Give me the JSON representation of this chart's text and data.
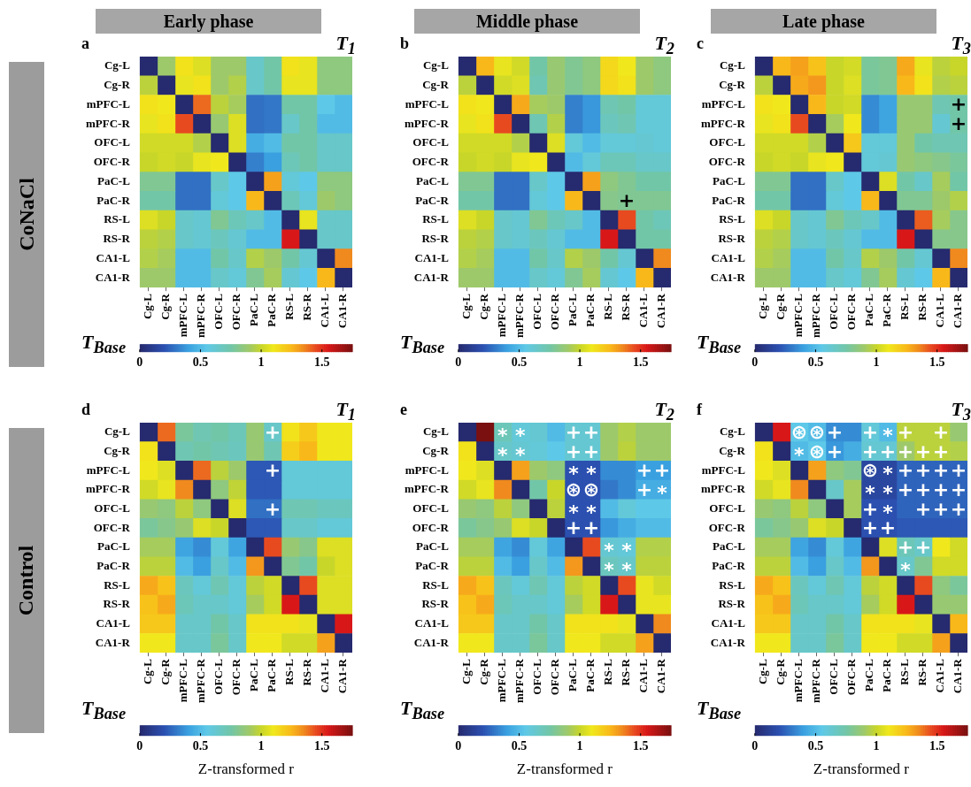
{
  "chart_data": [
    {
      "type": "heatmap",
      "title": "Early phase",
      "categories": [
        "Cg-L",
        "Cg-R",
        "mPFC-L",
        "mPFC-R",
        "OFC-L",
        "OFC-R",
        "PaC-L",
        "PaC-R",
        "RS-L",
        "RS-R",
        "CA1-L",
        "CA1-R"
      ],
      "y_categories": [
        "Cg-L",
        "Cg-R",
        "mPFC-L",
        "mPFC-R",
        "OFC-L",
        "OFC-R",
        "PaC-L",
        "PaC-R",
        "RS-L",
        "RS-R",
        "CA1-L",
        "CA1-R"
      ],
      "clim": [
        0,
        1.75
      ],
      "cells": [
        [
          0,
          0.9,
          1.12,
          1.05,
          0.9,
          0.9,
          0.65,
          0.75,
          1.12,
          1.08,
          0.85,
          0.85
        ],
        [
          0.97,
          0,
          1.08,
          1.12,
          0.9,
          0.95,
          0.65,
          0.75,
          1.08,
          1.08,
          0.85,
          0.85
        ],
        [
          1.12,
          1.1,
          0,
          1.4,
          0.97,
          0.92,
          0.28,
          0.3,
          0.75,
          0.75,
          0.55,
          0.5
        ],
        [
          1.08,
          1.12,
          1.45,
          0,
          0.88,
          1.05,
          0.28,
          0.3,
          0.65,
          0.75,
          0.5,
          0.5
        ],
        [
          1.02,
          1.02,
          1.02,
          0.95,
          0,
          1.05,
          0.45,
          0.5,
          0.75,
          0.75,
          0.65,
          0.65
        ],
        [
          1,
          1.02,
          1,
          1.08,
          1.1,
          0,
          0.32,
          0.4,
          0.7,
          0.75,
          0.65,
          0.65
        ],
        [
          0.8,
          0.8,
          0.28,
          0.28,
          0.65,
          0.55,
          0,
          1.3,
          0.6,
          0.55,
          0.85,
          0.85
        ],
        [
          0.75,
          0.75,
          0.28,
          0.28,
          0.6,
          0.55,
          1.25,
          0,
          0.7,
          0.6,
          0.9,
          0.85
        ],
        [
          1.05,
          1,
          0.65,
          0.62,
          0.8,
          0.7,
          0.65,
          0.5,
          0,
          1.08,
          0.65,
          0.65
        ],
        [
          0.97,
          0.95,
          0.65,
          0.62,
          0.68,
          0.62,
          0.5,
          0.5,
          1.55,
          0,
          0.65,
          0.65
        ],
        [
          0.95,
          0.92,
          0.5,
          0.5,
          0.75,
          0.65,
          0.95,
          0.9,
          0.75,
          0.62,
          0,
          1.35
        ],
        [
          0.9,
          0.9,
          0.5,
          0.5,
          0.65,
          0.6,
          0.8,
          0.92,
          0.62,
          0.55,
          1.25,
          0
        ]
      ],
      "cticks": [
        0,
        0.5,
        1,
        1.5
      ],
      "annotations": [
        "a",
        "T$_{1}$",
        "T$_{Base}$",
        "CoNaCl"
      ]
    },
    {
      "type": "heatmap",
      "title": "Middle phase",
      "categories": [
        "Cg-L",
        "Cg-R",
        "mPFC-L",
        "mPFC-R",
        "OFC-L",
        "OFC-R",
        "PaC-L",
        "PaC-R",
        "RS-L",
        "RS-R",
        "CA1-L",
        "CA1-R"
      ],
      "y_categories": [
        "Cg-L",
        "Cg-R",
        "mPFC-L",
        "mPFC-R",
        "OFC-L",
        "OFC-R",
        "PaC-L",
        "PaC-R",
        "RS-L",
        "RS-R",
        "CA1-L",
        "CA1-R"
      ],
      "clim": [
        0,
        1.75
      ],
      "cells": [
        [
          0,
          1.25,
          1.08,
          1.02,
          0.75,
          0.88,
          0.8,
          0.85,
          1.15,
          1.1,
          0.9,
          0.85
        ],
        [
          0.97,
          0,
          1.02,
          1.05,
          0.72,
          0.88,
          0.8,
          0.85,
          1.15,
          1.12,
          0.9,
          0.85
        ],
        [
          1.12,
          1.1,
          0,
          1.28,
          0.92,
          0.9,
          0.32,
          0.38,
          0.72,
          0.75,
          0.6,
          0.6
        ],
        [
          1.08,
          1.12,
          1.45,
          0,
          0.72,
          0.95,
          0.32,
          0.38,
          0.68,
          0.72,
          0.6,
          0.6
        ],
        [
          1.02,
          1.02,
          1.02,
          0.95,
          0,
          1.05,
          0.6,
          0.5,
          0.6,
          0.6,
          0.62,
          0.6
        ],
        [
          1,
          1.02,
          1,
          1.08,
          1.1,
          0,
          0.5,
          0.6,
          0.7,
          0.7,
          0.65,
          0.65
        ],
        [
          0.8,
          0.8,
          0.28,
          0.28,
          0.65,
          0.55,
          0,
          1.3,
          0.85,
          0.8,
          0.75,
          0.75
        ],
        [
          0.75,
          0.75,
          0.28,
          0.28,
          0.6,
          0.55,
          1.25,
          0,
          0.82,
          0.8,
          0.8,
          0.8
        ],
        [
          1.05,
          1,
          0.65,
          0.62,
          0.8,
          0.7,
          0.65,
          0.5,
          0,
          1.45,
          0.75,
          0.7
        ],
        [
          0.97,
          0.95,
          0.65,
          0.62,
          0.68,
          0.62,
          0.5,
          0.5,
          1.55,
          0,
          0.75,
          0.75
        ],
        [
          0.95,
          0.92,
          0.5,
          0.5,
          0.75,
          0.65,
          0.95,
          0.9,
          0.75,
          0.62,
          0,
          1.35
        ],
        [
          0.9,
          0.9,
          0.5,
          0.5,
          0.65,
          0.6,
          0.8,
          0.92,
          0.62,
          0.55,
          1.25,
          0
        ]
      ],
      "cell_labels": [
        [
          null,
          null,
          null,
          null,
          null,
          null,
          null,
          null,
          null,
          null,
          null,
          null
        ],
        [
          null,
          null,
          null,
          null,
          null,
          null,
          null,
          null,
          null,
          null,
          null,
          null
        ],
        [
          null,
          null,
          null,
          null,
          null,
          null,
          null,
          null,
          null,
          null,
          null,
          null
        ],
        [
          null,
          null,
          null,
          null,
          null,
          null,
          null,
          null,
          null,
          null,
          null,
          null
        ],
        [
          null,
          null,
          null,
          null,
          null,
          null,
          null,
          null,
          null,
          null,
          null,
          null
        ],
        [
          null,
          null,
          null,
          null,
          null,
          null,
          null,
          null,
          null,
          null,
          null,
          null
        ],
        [
          null,
          null,
          null,
          null,
          null,
          null,
          null,
          null,
          null,
          null,
          null,
          null
        ],
        [
          null,
          null,
          null,
          null,
          null,
          null,
          null,
          null,
          null,
          "+",
          null,
          null
        ],
        [
          null,
          null,
          null,
          null,
          null,
          null,
          null,
          null,
          null,
          null,
          null,
          null
        ],
        [
          null,
          null,
          null,
          null,
          null,
          null,
          null,
          null,
          null,
          null,
          null,
          null
        ],
        [
          null,
          null,
          null,
          null,
          null,
          null,
          null,
          null,
          null,
          null,
          null,
          null
        ],
        [
          null,
          null,
          null,
          null,
          null,
          null,
          null,
          null,
          null,
          null,
          null,
          null
        ]
      ],
      "cticks": [
        0,
        0.5,
        1,
        1.5
      ],
      "annotations": [
        "b",
        "T$_{2}$",
        "T$_{Base}$"
      ]
    },
    {
      "type": "heatmap",
      "title": "Late phase",
      "categories": [
        "Cg-L",
        "Cg-R",
        "mPFC-L",
        "mPFC-R",
        "OFC-L",
        "OFC-R",
        "PaC-L",
        "PaC-R",
        "RS-L",
        "RS-R",
        "CA1-L",
        "CA1-R"
      ],
      "y_categories": [
        "Cg-L",
        "Cg-R",
        "mPFC-L",
        "mPFC-R",
        "OFC-L",
        "OFC-R",
        "PaC-L",
        "PaC-R",
        "RS-L",
        "RS-R",
        "CA1-L",
        "CA1-R"
      ],
      "clim": [
        0,
        1.75
      ],
      "cells": [
        [
          0,
          1.25,
          1.3,
          1.22,
          1,
          1.03,
          0.78,
          0.8,
          1.28,
          1.08,
          0.97,
          1
        ],
        [
          0.97,
          0,
          1.28,
          1.32,
          1,
          1.05,
          0.78,
          0.8,
          1.25,
          1.12,
          0.95,
          0.97
        ],
        [
          1.12,
          1.1,
          0,
          1.25,
          1,
          1.02,
          0.35,
          0.42,
          0.88,
          0.88,
          0.72,
          0.75
        ],
        [
          1.08,
          1.12,
          1.45,
          0,
          0.92,
          1.1,
          0.35,
          0.42,
          0.88,
          0.88,
          0.62,
          0.75
        ],
        [
          1.02,
          1.02,
          1.02,
          0.95,
          0,
          1.2,
          0.6,
          0.6,
          0.88,
          0.75,
          0.72,
          0.72
        ],
        [
          1,
          1.02,
          1,
          1.08,
          1.1,
          0,
          0.6,
          0.62,
          0.88,
          0.85,
          0.82,
          0.78
        ],
        [
          0.8,
          0.8,
          0.28,
          0.28,
          0.65,
          0.55,
          0,
          1.05,
          0.75,
          0.65,
          0.92,
          0.75
        ],
        [
          0.75,
          0.75,
          0.28,
          0.28,
          0.6,
          0.55,
          1.25,
          0,
          0.8,
          0.8,
          0.9,
          0.95
        ],
        [
          1.05,
          1,
          0.65,
          0.62,
          0.8,
          0.7,
          0.65,
          0.5,
          0,
          1.42,
          0.92,
          0.82
        ],
        [
          0.97,
          0.95,
          0.65,
          0.62,
          0.68,
          0.62,
          0.5,
          0.5,
          1.55,
          0,
          0.82,
          0.82
        ],
        [
          0.95,
          0.92,
          0.5,
          0.5,
          0.75,
          0.65,
          0.95,
          0.9,
          0.75,
          0.62,
          0,
          1.35
        ],
        [
          0.9,
          0.9,
          0.5,
          0.5,
          0.65,
          0.6,
          0.8,
          0.92,
          0.62,
          0.55,
          1.25,
          0
        ]
      ],
      "cell_labels": [
        [
          null,
          null,
          null,
          null,
          null,
          null,
          null,
          null,
          null,
          null,
          null,
          null
        ],
        [
          null,
          null,
          null,
          null,
          null,
          null,
          null,
          null,
          null,
          null,
          null,
          null
        ],
        [
          null,
          null,
          null,
          null,
          null,
          null,
          null,
          null,
          null,
          null,
          null,
          "+"
        ],
        [
          null,
          null,
          null,
          null,
          null,
          null,
          null,
          null,
          null,
          null,
          null,
          "+"
        ],
        [
          null,
          null,
          null,
          null,
          null,
          null,
          null,
          null,
          null,
          null,
          null,
          null
        ],
        [
          null,
          null,
          null,
          null,
          null,
          null,
          null,
          null,
          null,
          null,
          null,
          null
        ],
        [
          null,
          null,
          null,
          null,
          null,
          null,
          null,
          null,
          null,
          null,
          null,
          null
        ],
        [
          null,
          null,
          null,
          null,
          null,
          null,
          null,
          null,
          null,
          null,
          null,
          null
        ],
        [
          null,
          null,
          null,
          null,
          null,
          null,
          null,
          null,
          null,
          null,
          null,
          null
        ],
        [
          null,
          null,
          null,
          null,
          null,
          null,
          null,
          null,
          null,
          null,
          null,
          null
        ],
        [
          null,
          null,
          null,
          null,
          null,
          null,
          null,
          null,
          null,
          null,
          null,
          null
        ],
        [
          null,
          null,
          null,
          null,
          null,
          null,
          null,
          null,
          null,
          null,
          null,
          null
        ]
      ],
      "cticks": [
        0,
        0.5,
        1,
        1.5
      ],
      "annotations": [
        "c",
        "T$_{3}$",
        "T$_{Base}$"
      ]
    },
    {
      "type": "heatmap",
      "categories": [
        "Cg-L",
        "Cg-R",
        "mPFC-L",
        "mPFC-R",
        "OFC-L",
        "OFC-R",
        "PaC-L",
        "PaC-R",
        "RS-L",
        "RS-R",
        "CA1-L",
        "CA1-R"
      ],
      "y_categories": [
        "Cg-L",
        "Cg-R",
        "mPFC-L",
        "mPFC-R",
        "OFC-L",
        "OFC-R",
        "PaC-L",
        "PaC-R",
        "RS-L",
        "RS-R",
        "CA1-L",
        "CA1-R"
      ],
      "clim": [
        0,
        1.75
      ],
      "cticks": [
        0,
        0.5,
        1,
        1.5
      ],
      "clabel": "Z-transformed r",
      "cells": [
        [
          0,
          1.4,
          0.78,
          0.72,
          0.75,
          0.7,
          0.88,
          0.65,
          1.12,
          1.2,
          1.1,
          1.1
        ],
        [
          1.12,
          0,
          0.72,
          0.75,
          0.72,
          0.68,
          0.88,
          0.72,
          1.18,
          1.25,
          1.1,
          1.1
        ],
        [
          1.1,
          1.05,
          0,
          1.4,
          0.97,
          0.9,
          0.22,
          0.22,
          0.6,
          0.6,
          0.6,
          0.6
        ],
        [
          1.02,
          1.08,
          1.35,
          0,
          0.85,
          0.98,
          0.22,
          0.22,
          0.6,
          0.6,
          0.6,
          0.6
        ],
        [
          0.88,
          0.85,
          0.97,
          0.85,
          0,
          1.05,
          0.28,
          0.28,
          0.72,
          0.72,
          0.68,
          0.68
        ],
        [
          0.78,
          0.82,
          0.88,
          1.05,
          1,
          0,
          0.22,
          0.22,
          0.65,
          0.65,
          0.6,
          0.6
        ],
        [
          0.92,
          0.92,
          0.42,
          0.35,
          0.6,
          0.42,
          0,
          1.45,
          0.88,
          0.82,
          1.05,
          1.05
        ],
        [
          0.97,
          0.97,
          0.5,
          0.4,
          0.65,
          0.5,
          1.32,
          0,
          0.8,
          0.75,
          1,
          1.05
        ],
        [
          1.28,
          1.22,
          0.68,
          0.6,
          0.72,
          0.6,
          0.97,
          1.02,
          0,
          1.45,
          1.05,
          1.05
        ],
        [
          1.22,
          1.28,
          0.7,
          0.65,
          0.65,
          0.6,
          0.92,
          1.02,
          1.55,
          0,
          1.05,
          1.05
        ],
        [
          1.2,
          1.2,
          0.65,
          0.65,
          0.75,
          0.65,
          1.12,
          1.12,
          1.12,
          1.08,
          0,
          1.55
        ],
        [
          1.1,
          1.1,
          0.65,
          0.65,
          0.78,
          0.65,
          1.1,
          1.1,
          1.02,
          1.02,
          1.3,
          0
        ]
      ],
      "cell_labels": [
        [
          null,
          null,
          null,
          null,
          null,
          null,
          null,
          "+",
          null,
          null,
          null,
          null
        ],
        [
          null,
          null,
          null,
          null,
          null,
          null,
          null,
          null,
          null,
          null,
          null,
          null
        ],
        [
          null,
          null,
          null,
          null,
          null,
          null,
          null,
          "+",
          null,
          null,
          null,
          null
        ],
        [
          null,
          null,
          null,
          null,
          null,
          null,
          null,
          null,
          null,
          null,
          null,
          null
        ],
        [
          null,
          null,
          null,
          null,
          null,
          null,
          null,
          "+",
          null,
          null,
          null,
          null
        ],
        [
          null,
          null,
          null,
          null,
          null,
          null,
          null,
          null,
          null,
          null,
          null,
          null
        ],
        [
          null,
          null,
          null,
          null,
          null,
          null,
          null,
          null,
          null,
          null,
          null,
          null
        ],
        [
          null,
          null,
          null,
          null,
          null,
          null,
          null,
          null,
          null,
          null,
          null,
          null
        ],
        [
          null,
          null,
          null,
          null,
          null,
          null,
          null,
          null,
          null,
          null,
          null,
          null
        ],
        [
          null,
          null,
          null,
          null,
          null,
          null,
          null,
          null,
          null,
          null,
          null,
          null
        ],
        [
          null,
          null,
          null,
          null,
          null,
          null,
          null,
          null,
          null,
          null,
          null,
          null
        ],
        [
          null,
          null,
          null,
          null,
          null,
          null,
          null,
          null,
          null,
          null,
          null,
          null
        ]
      ],
      "annotations": [
        "d",
        "T$_{1}$",
        "T$_{Base}$",
        "Control"
      ]
    },
    {
      "type": "heatmap",
      "categories": [
        "Cg-L",
        "Cg-R",
        "mPFC-L",
        "mPFC-R",
        "OFC-L",
        "OFC-R",
        "PaC-L",
        "PaC-R",
        "RS-L",
        "RS-R",
        "CA1-L",
        "CA1-R"
      ],
      "y_categories": [
        "Cg-L",
        "Cg-R",
        "mPFC-L",
        "mPFC-R",
        "OFC-L",
        "OFC-R",
        "PaC-L",
        "PaC-R",
        "RS-L",
        "RS-R",
        "CA1-L",
        "CA1-R"
      ],
      "clim": [
        0,
        1.75
      ],
      "cticks": [
        0,
        0.5,
        1,
        1.5
      ],
      "clabel": "Z-transformed r",
      "cells": [
        [
          0,
          1.75,
          0.7,
          0.6,
          0.62,
          0.5,
          0.62,
          0.62,
          0.9,
          0.95,
          0.9,
          0.9
        ],
        [
          1.12,
          0,
          0.65,
          0.62,
          0.6,
          0.55,
          0.62,
          0.62,
          0.9,
          0.97,
          0.9,
          0.9
        ],
        [
          1.1,
          1.05,
          0,
          1.3,
          0.9,
          0.85,
          0.2,
          0.2,
          0.35,
          0.35,
          0.4,
          0.4
        ],
        [
          1.02,
          1.08,
          1.35,
          0,
          0.75,
          1,
          0.2,
          0.2,
          0.3,
          0.35,
          0.45,
          0.45
        ],
        [
          0.88,
          0.85,
          0.97,
          0.85,
          0,
          0.97,
          0.2,
          0.2,
          0.5,
          0.6,
          0.55,
          0.55
        ],
        [
          0.78,
          0.82,
          0.88,
          1.05,
          1,
          0,
          0.2,
          0.2,
          0.38,
          0.45,
          0.5,
          0.5
        ],
        [
          0.92,
          0.92,
          0.42,
          0.35,
          0.6,
          0.42,
          0,
          1.45,
          0.62,
          0.6,
          0.95,
          0.95
        ],
        [
          0.97,
          0.97,
          0.5,
          0.4,
          0.65,
          0.5,
          1.32,
          0,
          0.68,
          0.65,
          0.97,
          0.97
        ],
        [
          1.28,
          1.22,
          0.68,
          0.6,
          0.72,
          0.6,
          0.97,
          1.02,
          0,
          1.45,
          1.08,
          1.02
        ],
        [
          1.22,
          1.28,
          0.7,
          0.65,
          0.65,
          0.6,
          0.92,
          1.02,
          1.55,
          0,
          1.08,
          1.08
        ],
        [
          1.2,
          1.2,
          0.65,
          0.65,
          0.75,
          0.65,
          1.12,
          1.12,
          1.12,
          1.08,
          0,
          1.35
        ],
        [
          1.1,
          1.1,
          0.65,
          0.65,
          0.78,
          0.65,
          1.1,
          1.1,
          1.02,
          1.02,
          1.3,
          0
        ]
      ],
      "cell_labels": [
        [
          null,
          null,
          "*",
          "*",
          null,
          null,
          "+",
          "+",
          null,
          null,
          null,
          null
        ],
        [
          null,
          null,
          "*",
          "*",
          null,
          null,
          "+",
          "+",
          null,
          null,
          null,
          null
        ],
        [
          null,
          null,
          null,
          null,
          null,
          null,
          "*",
          "*",
          null,
          null,
          "+",
          "+"
        ],
        [
          null,
          null,
          null,
          null,
          null,
          null,
          "⊛",
          "⊛",
          null,
          null,
          "+",
          "*"
        ],
        [
          null,
          null,
          null,
          null,
          null,
          null,
          "*",
          "*",
          null,
          null,
          null,
          null
        ],
        [
          null,
          null,
          null,
          null,
          null,
          null,
          "+",
          "+",
          null,
          null,
          null,
          null
        ],
        [
          null,
          null,
          null,
          null,
          null,
          null,
          null,
          null,
          "*",
          "*",
          null,
          null
        ],
        [
          null,
          null,
          null,
          null,
          null,
          null,
          null,
          null,
          "*",
          "*",
          null,
          null
        ],
        [
          null,
          null,
          null,
          null,
          null,
          null,
          null,
          null,
          null,
          null,
          null,
          null
        ],
        [
          null,
          null,
          null,
          null,
          null,
          null,
          null,
          null,
          null,
          null,
          null,
          null
        ],
        [
          null,
          null,
          null,
          null,
          null,
          null,
          null,
          null,
          null,
          null,
          null,
          null
        ],
        [
          null,
          null,
          null,
          null,
          null,
          null,
          null,
          null,
          null,
          null,
          null,
          null
        ]
      ],
      "annotations": [
        "e",
        "T$_{2}$",
        "T$_{Base}$"
      ]
    },
    {
      "type": "heatmap",
      "categories": [
        "Cg-L",
        "Cg-R",
        "mPFC-L",
        "mPFC-R",
        "OFC-L",
        "OFC-R",
        "PaC-L",
        "PaC-R",
        "RS-L",
        "RS-R",
        "CA1-L",
        "CA1-R"
      ],
      "y_categories": [
        "Cg-L",
        "Cg-R",
        "mPFC-L",
        "mPFC-R",
        "OFC-L",
        "OFC-R",
        "PaC-L",
        "PaC-R",
        "RS-L",
        "RS-R",
        "CA1-L",
        "CA1-R"
      ],
      "clim": [
        0,
        1.75
      ],
      "cticks": [
        0,
        0.5,
        1,
        1.5
      ],
      "clabel": "Z-transformed r",
      "cells": [
        [
          0,
          1.55,
          0.55,
          0.5,
          0.35,
          0.35,
          0.6,
          0.5,
          0.97,
          0.97,
          0.97,
          0.88
        ],
        [
          1.12,
          0,
          0.5,
          0.55,
          0.38,
          0.45,
          0.62,
          0.62,
          0.9,
          0.97,
          0.97,
          0.95
        ],
        [
          1.1,
          1.05,
          0,
          1.3,
          0.85,
          0.8,
          0.15,
          0.15,
          0.25,
          0.25,
          0.25,
          0.25
        ],
        [
          1.02,
          1.08,
          1.35,
          0,
          0.65,
          0.92,
          0.15,
          0.15,
          0.25,
          0.25,
          0.25,
          0.25
        ],
        [
          0.88,
          0.85,
          0.97,
          0.85,
          0,
          0.92,
          0.2,
          0.2,
          0.25,
          0.25,
          0.25,
          0.25
        ],
        [
          0.78,
          0.82,
          0.88,
          1.05,
          1,
          0,
          0.2,
          0.2,
          0.22,
          0.22,
          0.22,
          0.22
        ],
        [
          0.92,
          0.92,
          0.42,
          0.35,
          0.6,
          0.42,
          0,
          1.05,
          0.7,
          0.65,
          1.1,
          1.02
        ],
        [
          0.97,
          0.97,
          0.5,
          0.4,
          0.65,
          0.5,
          1.32,
          0,
          0.65,
          0.8,
          1.02,
          1.02
        ],
        [
          1.28,
          1.22,
          0.68,
          0.6,
          0.72,
          0.6,
          0.97,
          1.02,
          0,
          1.45,
          0.85,
          0.78
        ],
        [
          1.22,
          1.28,
          0.7,
          0.65,
          0.65,
          0.6,
          0.92,
          1.02,
          1.55,
          0,
          0.88,
          0.88
        ],
        [
          1.2,
          1.2,
          0.65,
          0.65,
          0.75,
          0.65,
          1.12,
          1.12,
          1.12,
          1.08,
          0,
          1.25
        ],
        [
          1.1,
          1.1,
          0.65,
          0.65,
          0.78,
          0.65,
          1.1,
          1.1,
          1.02,
          1.02,
          1.3,
          0
        ]
      ],
      "cell_labels": [
        [
          null,
          null,
          "⊛",
          "⊛",
          "+",
          null,
          "+",
          "*",
          "+",
          null,
          "+",
          null
        ],
        [
          null,
          null,
          "*",
          "⊛",
          "+",
          null,
          "+",
          "+",
          "+",
          "+",
          "+",
          null
        ],
        [
          null,
          null,
          null,
          null,
          null,
          null,
          "⊛",
          "*",
          "+",
          "+",
          "+",
          "+"
        ],
        [
          null,
          null,
          null,
          null,
          null,
          null,
          "*",
          "*",
          "+",
          "+",
          "+",
          "+"
        ],
        [
          null,
          null,
          null,
          null,
          null,
          null,
          "+",
          "*",
          null,
          "+",
          "+",
          "+"
        ],
        [
          null,
          null,
          null,
          null,
          null,
          null,
          "+",
          "+",
          null,
          null,
          null,
          null
        ],
        [
          null,
          null,
          null,
          null,
          null,
          null,
          null,
          null,
          "+",
          "+",
          null,
          null
        ],
        [
          null,
          null,
          null,
          null,
          null,
          null,
          null,
          null,
          "*",
          null,
          null,
          null
        ],
        [
          null,
          null,
          null,
          null,
          null,
          null,
          null,
          null,
          null,
          null,
          null,
          null
        ],
        [
          null,
          null,
          null,
          null,
          null,
          null,
          null,
          null,
          null,
          null,
          null,
          null
        ],
        [
          null,
          null,
          null,
          null,
          null,
          null,
          null,
          null,
          null,
          null,
          null,
          null
        ],
        [
          null,
          null,
          null,
          null,
          null,
          null,
          null,
          null,
          null,
          null,
          null,
          null
        ]
      ],
      "annotations": [
        "f",
        "T$_{3}$",
        "T$_{Base}$"
      ]
    }
  ]
}
